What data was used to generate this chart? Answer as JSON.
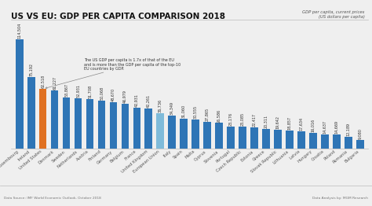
{
  "title": "US VS EU: GDP PER CAPITA COMPARISON 2018",
  "categories": [
    "Luxembourg",
    "Ireland",
    "United States",
    "Denmark",
    "Sweden",
    "Netherlands",
    "Austria",
    "Finland",
    "Germany",
    "Belgium",
    "France",
    "United Kingdom",
    "European Union",
    "Italy",
    "Spain",
    "Malta",
    "Cyprus",
    "Slovenia",
    "Portugal",
    "Czech Republic",
    "Estonia",
    "Greece",
    "Slovak Republic",
    "Lithuania",
    "Latvia",
    "Hungary",
    "Croatia",
    "Poland",
    "Romania",
    "Bulgaria"
  ],
  "values": [
    114504,
    75192,
    62518,
    61227,
    53867,
    52931,
    51708,
    50068,
    48670,
    46979,
    42931,
    42261,
    36736,
    34349,
    31060,
    30555,
    27865,
    26586,
    23176,
    23085,
    22417,
    20311,
    19642,
    18857,
    17634,
    16016,
    14637,
    14669,
    12189,
    9080
  ],
  "colors": [
    "#2E75B6",
    "#2E75B6",
    "#E07020",
    "#2E75B6",
    "#2E75B6",
    "#2E75B6",
    "#2E75B6",
    "#2E75B6",
    "#2E75B6",
    "#2E75B6",
    "#2E75B6",
    "#2E75B6",
    "#7FBBDA",
    "#2E75B6",
    "#2E75B6",
    "#2E75B6",
    "#2E75B6",
    "#2E75B6",
    "#2E75B6",
    "#2E75B6",
    "#2E75B6",
    "#2E75B6",
    "#2E75B6",
    "#2E75B6",
    "#2E75B6",
    "#2E75B6",
    "#2E75B6",
    "#2E75B6",
    "#2E75B6",
    "#2E75B6"
  ],
  "annotation_text": "The US GDP per capita is 1.7x of that of the EU\nand is more than the GDP per capita of the top-10\nEU countries by GDP.",
  "legend_text": "GDP per capita, current prices\n(US dollars per capita)",
  "source_left": "Data Source: IMF World Economic Outlook, October 2018",
  "source_right": "Data Analysis by: MGM Research",
  "bar_label_fontsize": 3.5,
  "title_fontsize": 7.5,
  "bg_color": "#EFEFEF",
  "ylim": [
    0,
    130000
  ]
}
